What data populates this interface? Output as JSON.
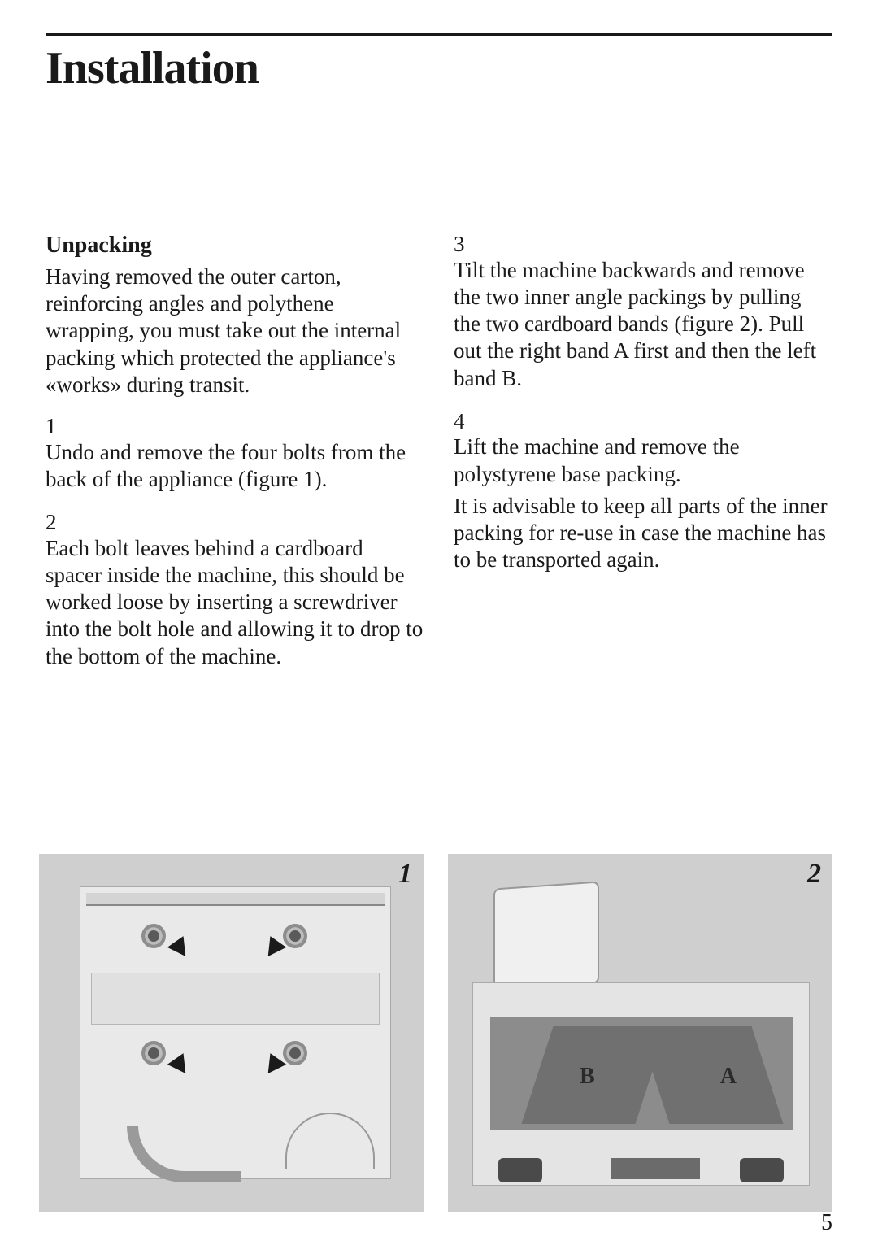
{
  "text_color": "#1a1a1a",
  "background_color": "#ffffff",
  "page_title": "Installation",
  "page_number": "5",
  "left": {
    "heading": "Unpacking",
    "intro": "Having removed the outer carton, reinforcing angles and polythene wrapping, you must take out the internal packing which protected the appliance's «works» during transit.",
    "step1_num": "1",
    "step1": "Undo and remove the four bolts from the back of the appliance (figure 1).",
    "step2_num": "2",
    "step2": "Each bolt leaves behind a cardboard spacer inside the machine, this should be worked loose by inserting a screwdriver into the bolt hole and allowing it to drop to the bottom of the machine."
  },
  "right": {
    "step3_num": "3",
    "step3": "Tilt the machine backwards and remove the two inner angle packings by pulling the two cardboard bands (figure 2). Pull out the right band A first and then the left band B.",
    "step4_num": "4",
    "step4a": "Lift the machine and remove the polystyrene base packing.",
    "step4b": "It is advisable to keep all parts of the inner packing for re-use in case the machine has to be transported again."
  },
  "figures": {
    "fig1": {
      "badge": "1"
    },
    "fig2": {
      "badge": "2",
      "labelA": "A",
      "labelB": "B"
    }
  },
  "typography": {
    "title_fontsize_pt": 42,
    "heading_fontsize_pt": 21,
    "body_fontsize_pt": 20,
    "font_family": "serif"
  }
}
